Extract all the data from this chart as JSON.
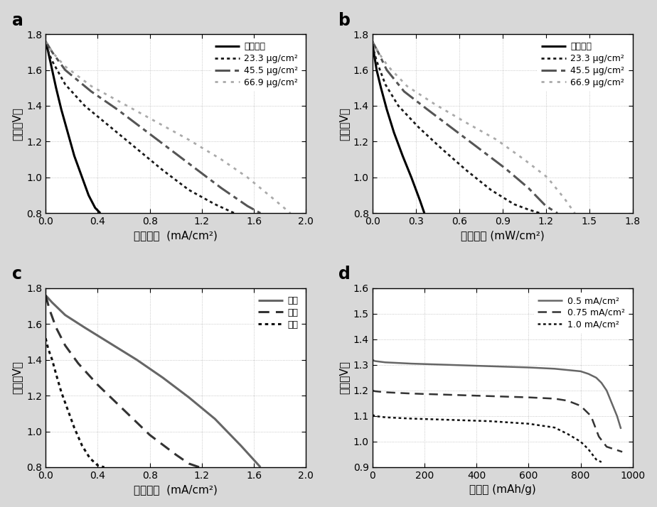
{
  "fig_width": 9.24,
  "fig_height": 7.14,
  "panel_a": {
    "label": "a",
    "xlabel": "电流密度  (mA/cm²)",
    "ylabel": "电压（V）",
    "xlim": [
      0,
      2.0
    ],
    "ylim": [
      0.8,
      1.8
    ],
    "xticks": [
      0.0,
      0.4,
      0.8,
      1.2,
      1.6,
      2.0
    ],
    "yticks": [
      0.8,
      1.0,
      1.2,
      1.4,
      1.6,
      1.8
    ],
    "series": [
      {
        "label": "未蘵镑銀",
        "color": "#000000",
        "linestyle": "solid",
        "lw": 2.2,
        "x": [
          0.0,
          0.02,
          0.05,
          0.08,
          0.12,
          0.17,
          0.22,
          0.28,
          0.33,
          0.38,
          0.42
        ],
        "y": [
          1.76,
          1.7,
          1.6,
          1.5,
          1.38,
          1.25,
          1.12,
          1.0,
          0.9,
          0.83,
          0.8
        ]
      },
      {
        "label": "23.3 μg/cm²",
        "color": "#1a1a1a",
        "linestyle": "densely dotted",
        "lw": 2.0,
        "x": [
          0.0,
          0.05,
          0.15,
          0.3,
          0.5,
          0.7,
          0.9,
          1.1,
          1.3,
          1.45
        ],
        "y": [
          1.74,
          1.65,
          1.52,
          1.4,
          1.28,
          1.16,
          1.04,
          0.93,
          0.85,
          0.8
        ]
      },
      {
        "label": "45.5 μg/cm²",
        "color": "#555555",
        "linestyle": "dashdot",
        "lw": 2.2,
        "x": [
          0.0,
          0.05,
          0.15,
          0.35,
          0.55,
          0.75,
          0.95,
          1.15,
          1.35,
          1.55,
          1.65
        ],
        "y": [
          1.76,
          1.7,
          1.6,
          1.48,
          1.38,
          1.27,
          1.16,
          1.05,
          0.94,
          0.84,
          0.8
        ]
      },
      {
        "label": "66.9 μg/cm²",
        "color": "#aaaaaa",
        "linestyle": "dotted",
        "lw": 2.0,
        "x": [
          0.0,
          0.05,
          0.15,
          0.35,
          0.6,
          0.85,
          1.1,
          1.35,
          1.55,
          1.75,
          1.88
        ],
        "y": [
          1.76,
          1.7,
          1.62,
          1.51,
          1.41,
          1.31,
          1.21,
          1.1,
          1.0,
          0.88,
          0.8
        ]
      }
    ]
  },
  "panel_b": {
    "label": "b",
    "xlabel": "功率密度 (mW/cm²)",
    "ylabel": "电压（V）",
    "xlim": [
      0,
      1.8
    ],
    "ylim": [
      0.8,
      1.8
    ],
    "xticks": [
      0.0,
      0.3,
      0.6,
      0.9,
      1.2,
      1.5,
      1.8
    ],
    "yticks": [
      0.8,
      1.0,
      1.2,
      1.4,
      1.6,
      1.8
    ],
    "series": [
      {
        "label": "未蘵镑銀",
        "color": "#000000",
        "linestyle": "solid",
        "lw": 2.2,
        "x": [
          0.0,
          0.01,
          0.03,
          0.06,
          0.1,
          0.15,
          0.21,
          0.27,
          0.33,
          0.36
        ],
        "y": [
          1.76,
          1.7,
          1.6,
          1.5,
          1.38,
          1.25,
          1.12,
          1.0,
          0.87,
          0.8
        ]
      },
      {
        "label": "23.3 μg/cm²",
        "color": "#1a1a1a",
        "linestyle": "densely dotted",
        "lw": 2.0,
        "x": [
          0.0,
          0.03,
          0.09,
          0.18,
          0.32,
          0.48,
          0.65,
          0.82,
          0.98,
          1.08,
          1.16
        ],
        "y": [
          1.74,
          1.65,
          1.52,
          1.4,
          1.28,
          1.16,
          1.04,
          0.93,
          0.85,
          0.82,
          0.8
        ]
      },
      {
        "label": "45.5 μg/cm²",
        "color": "#555555",
        "linestyle": "dashdot",
        "lw": 2.2,
        "x": [
          0.0,
          0.04,
          0.1,
          0.22,
          0.38,
          0.56,
          0.74,
          0.92,
          1.08,
          1.2,
          1.28
        ],
        "y": [
          1.76,
          1.7,
          1.6,
          1.48,
          1.38,
          1.27,
          1.16,
          1.05,
          0.94,
          0.84,
          0.8
        ]
      },
      {
        "label": "66.9 μg/cm²",
        "color": "#aaaaaa",
        "linestyle": "dotted",
        "lw": 2.0,
        "x": [
          0.0,
          0.04,
          0.11,
          0.24,
          0.43,
          0.64,
          0.86,
          1.05,
          1.21,
          1.33,
          1.4
        ],
        "y": [
          1.76,
          1.7,
          1.62,
          1.51,
          1.41,
          1.31,
          1.21,
          1.1,
          1.0,
          0.88,
          0.8
        ]
      }
    ]
  },
  "panel_c": {
    "label": "c",
    "xlabel": "电流密度  (mA/cm²)",
    "ylabel": "电压（V）",
    "xlim": [
      0,
      2.0
    ],
    "ylim": [
      0.8,
      1.8
    ],
    "xticks": [
      0.0,
      0.4,
      0.8,
      1.2,
      1.6,
      2.0
    ],
    "yticks": [
      0.8,
      1.0,
      1.2,
      1.4,
      1.6,
      1.8
    ],
    "series": [
      {
        "label": "交错",
        "color": "#666666",
        "linestyle": "solid",
        "lw": 2.2,
        "x": [
          0.0,
          0.05,
          0.15,
          0.3,
          0.5,
          0.7,
          0.9,
          1.1,
          1.3,
          1.5,
          1.65
        ],
        "y": [
          1.76,
          1.72,
          1.65,
          1.58,
          1.49,
          1.4,
          1.3,
          1.19,
          1.07,
          0.92,
          0.8
        ]
      },
      {
        "label": "平行",
        "color": "#333333",
        "linestyle": "dashed",
        "lw": 2.2,
        "x": [
          0.0,
          0.03,
          0.08,
          0.15,
          0.25,
          0.4,
          0.6,
          0.8,
          1.0,
          1.1,
          1.18
        ],
        "y": [
          1.76,
          1.68,
          1.58,
          1.48,
          1.38,
          1.26,
          1.12,
          0.98,
          0.87,
          0.82,
          0.8
        ]
      },
      {
        "label": "垂直",
        "color": "#111111",
        "linestyle": "densely dotted",
        "lw": 2.2,
        "x": [
          0.0,
          0.02,
          0.05,
          0.08,
          0.12,
          0.17,
          0.22,
          0.28,
          0.34,
          0.4,
          0.45
        ],
        "y": [
          1.52,
          1.46,
          1.4,
          1.32,
          1.22,
          1.12,
          1.02,
          0.92,
          0.85,
          0.81,
          0.8
        ]
      }
    ]
  },
  "panel_d": {
    "label": "d",
    "xlabel": "比容量 (mAh/g)",
    "ylabel": "电压（V）",
    "xlim": [
      0,
      1000
    ],
    "ylim": [
      0.9,
      1.6
    ],
    "xticks": [
      0,
      200,
      400,
      600,
      800,
      1000
    ],
    "yticks": [
      0.9,
      1.0,
      1.1,
      1.2,
      1.3,
      1.4,
      1.5,
      1.6
    ],
    "series": [
      {
        "label": "0.5 mA/cm²",
        "color": "#666666",
        "linestyle": "solid",
        "lw": 1.8,
        "x": [
          0,
          10,
          50,
          150,
          300,
          450,
          600,
          700,
          750,
          800,
          830,
          860,
          880,
          900,
          920,
          940,
          955
        ],
        "y": [
          1.32,
          1.315,
          1.31,
          1.305,
          1.3,
          1.295,
          1.29,
          1.285,
          1.28,
          1.275,
          1.265,
          1.25,
          1.23,
          1.2,
          1.15,
          1.1,
          1.05
        ]
      },
      {
        "label": "0.75 mA/cm²",
        "color": "#333333",
        "linestyle": "dashed",
        "lw": 1.8,
        "x": [
          0,
          10,
          50,
          150,
          300,
          450,
          600,
          700,
          750,
          800,
          840,
          870,
          900,
          930,
          960
        ],
        "y": [
          1.2,
          1.197,
          1.193,
          1.188,
          1.183,
          1.178,
          1.173,
          1.168,
          1.16,
          1.14,
          1.1,
          1.02,
          0.98,
          0.97,
          0.96
        ]
      },
      {
        "label": "1.0 mA/cm²",
        "color": "#111111",
        "linestyle": "densely dotted",
        "lw": 1.8,
        "x": [
          0,
          10,
          50,
          150,
          300,
          450,
          600,
          700,
          750,
          800,
          830,
          860,
          880
        ],
        "y": [
          1.105,
          1.1,
          1.095,
          1.09,
          1.085,
          1.08,
          1.07,
          1.055,
          1.03,
          1.0,
          0.97,
          0.93,
          0.92
        ]
      }
    ]
  },
  "outer_bg_color": "#d8d8d8",
  "panel_bg_color": "#ffffff"
}
